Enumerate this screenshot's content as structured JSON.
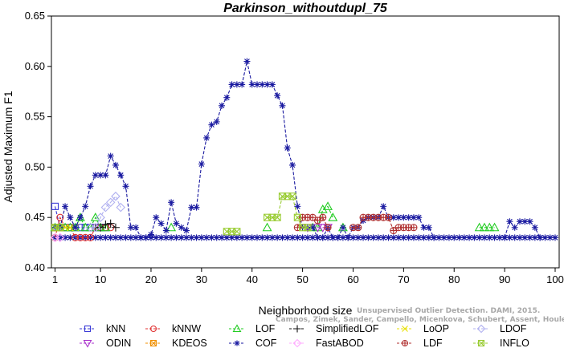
{
  "chart_data": {
    "type": "line",
    "title": "Parkinson_withoutdupl_75",
    "xlabel": "Neighborhood size",
    "ylabel": "Adjusted Maximum F1",
    "xlim": [
      1,
      100
    ],
    "ylim": [
      0.4,
      0.65
    ],
    "xticks": [
      1,
      10,
      20,
      30,
      40,
      50,
      60,
      70,
      80,
      90,
      100
    ],
    "yticks": [
      0.4,
      0.45,
      0.5,
      0.55,
      0.6,
      0.65
    ],
    "ytick_labels": [
      "0.40",
      "0.45",
      "0.50",
      "0.55",
      "0.60",
      "0.65"
    ],
    "grid": false,
    "legend_position": "bottom",
    "watermark": [
      "Unsupervised Outlier Detection. DAMI, 2015.",
      "Campos, Zimek, Sander, Campello, Micenkova, Schubert, Assent, Houle"
    ],
    "baseline": 0.43,
    "series": [
      {
        "name": "kNN",
        "color": "#3a3ad6",
        "marker": "square",
        "points": [
          [
            1,
            0.461
          ],
          [
            2,
            0.44
          ],
          [
            3,
            0.44
          ],
          [
            4,
            0.44
          ],
          [
            5,
            0.44
          ],
          [
            6,
            0.44
          ],
          [
            7,
            0.44
          ],
          [
            8,
            0.44
          ],
          [
            9,
            0.44
          ],
          [
            10,
            0.44
          ],
          [
            11,
            0.44
          ]
        ]
      },
      {
        "name": "kNNW",
        "color": "#e03030",
        "marker": "circle",
        "points": [
          [
            1,
            0.43
          ],
          [
            2,
            0.45
          ],
          [
            3,
            0.44
          ],
          [
            4,
            0.44
          ],
          [
            5,
            0.43
          ],
          [
            6,
            0.43
          ],
          [
            7,
            0.43
          ],
          [
            8,
            0.43
          ],
          [
            9,
            0.44
          ],
          [
            10,
            0.44
          ],
          [
            11,
            0.44
          ],
          [
            12,
            0.44
          ]
        ]
      },
      {
        "name": "LOF",
        "color": "#22cc22",
        "marker": "triangle-up",
        "points": [
          [
            1,
            0.44
          ],
          [
            2,
            0.44
          ],
          [
            3,
            0.44
          ],
          [
            4,
            0.44
          ],
          [
            5,
            0.44
          ],
          [
            6,
            0.45
          ],
          [
            7,
            0.44
          ],
          [
            8,
            0.44
          ],
          [
            9,
            0.45
          ],
          [
            10,
            0.44
          ],
          [
            11,
            0.44
          ],
          [
            24,
            0.44
          ],
          [
            43,
            0.44
          ],
          [
            52,
            0.44
          ],
          [
            53,
            0.44
          ],
          [
            54,
            0.458
          ],
          [
            55,
            0.461
          ],
          [
            56,
            0.45
          ],
          [
            58,
            0.44
          ],
          [
            85,
            0.44
          ],
          [
            86,
            0.44
          ],
          [
            87,
            0.44
          ],
          [
            88,
            0.44
          ]
        ]
      },
      {
        "name": "SimplifiedLOF",
        "color": "#111111",
        "marker": "plus",
        "points": [
          [
            9,
            0.44
          ],
          [
            10,
            0.44
          ],
          [
            11,
            0.443
          ],
          [
            12,
            0.444
          ],
          [
            13,
            0.44
          ]
        ]
      },
      {
        "name": "LoOP",
        "color": "#e8e000",
        "marker": "x",
        "points": [
          [
            3,
            0.44
          ],
          [
            4,
            0.44
          ],
          [
            5,
            0.44
          ]
        ]
      },
      {
        "name": "LDOF",
        "color": "#b0b0f0",
        "marker": "diamond",
        "points": [
          [
            8,
            0.44
          ],
          [
            9,
            0.44
          ],
          [
            10,
            0.45
          ],
          [
            11,
            0.46
          ],
          [
            12,
            0.465
          ],
          [
            13,
            0.471
          ],
          [
            14,
            0.46
          ]
        ]
      },
      {
        "name": "ODIN",
        "color": "#aa33cc",
        "marker": "triangle-down",
        "points": [
          [
            51,
            0.44
          ],
          [
            53,
            0.44
          ],
          [
            54,
            0.44
          ],
          [
            55,
            0.44
          ]
        ]
      },
      {
        "name": "KDEOS",
        "color": "#f09000",
        "marker": "square-x",
        "points": [
          [
            1,
            0.44
          ],
          [
            2,
            0.44
          ]
        ]
      },
      {
        "name": "COF",
        "color": "#1a1aa0",
        "marker": "star",
        "points": [
          [
            1,
            0.44
          ],
          [
            2,
            0.44
          ],
          [
            3,
            0.461
          ],
          [
            4,
            0.45
          ],
          [
            5,
            0.44
          ],
          [
            6,
            0.45
          ],
          [
            7,
            0.461
          ],
          [
            8,
            0.481
          ],
          [
            9,
            0.492
          ],
          [
            10,
            0.492
          ],
          [
            11,
            0.492
          ],
          [
            12,
            0.511
          ],
          [
            13,
            0.502
          ],
          [
            14,
            0.492
          ],
          [
            15,
            0.481
          ],
          [
            16,
            0.44
          ],
          [
            17,
            0.44
          ],
          [
            18,
            0.43
          ],
          [
            19,
            0.43
          ],
          [
            20,
            0.433
          ],
          [
            21,
            0.45
          ],
          [
            22,
            0.444
          ],
          [
            23,
            0.437
          ],
          [
            24,
            0.465
          ],
          [
            25,
            0.444
          ],
          [
            26,
            0.44
          ],
          [
            27,
            0.437
          ],
          [
            28,
            0.46
          ],
          [
            29,
            0.46
          ],
          [
            30,
            0.503
          ],
          [
            31,
            0.529
          ],
          [
            32,
            0.542
          ],
          [
            33,
            0.545
          ],
          [
            34,
            0.561
          ],
          [
            35,
            0.569
          ],
          [
            36,
            0.582
          ],
          [
            37,
            0.582
          ],
          [
            38,
            0.582
          ],
          [
            39,
            0.605
          ],
          [
            40,
            0.582
          ],
          [
            41,
            0.582
          ],
          [
            42,
            0.582
          ],
          [
            43,
            0.582
          ],
          [
            44,
            0.582
          ],
          [
            45,
            0.571
          ],
          [
            46,
            0.561
          ],
          [
            47,
            0.519
          ],
          [
            48,
            0.502
          ],
          [
            49,
            0.461
          ],
          [
            50,
            0.44
          ],
          [
            51,
            0.44
          ],
          [
            52,
            0.44
          ],
          [
            53,
            0.43
          ],
          [
            54,
            0.43
          ],
          [
            55,
            0.44
          ],
          [
            56,
            0.43
          ],
          [
            57,
            0.43
          ],
          [
            58,
            0.44
          ],
          [
            59,
            0.43
          ],
          [
            60,
            0.44
          ],
          [
            61,
            0.44
          ],
          [
            62,
            0.447
          ],
          [
            63,
            0.45
          ],
          [
            64,
            0.45
          ],
          [
            65,
            0.45
          ],
          [
            66,
            0.461
          ],
          [
            67,
            0.45
          ],
          [
            68,
            0.45
          ],
          [
            69,
            0.45
          ],
          [
            70,
            0.45
          ],
          [
            71,
            0.45
          ],
          [
            72,
            0.45
          ],
          [
            73,
            0.45
          ],
          [
            74,
            0.44
          ],
          [
            75,
            0.44
          ],
          [
            76,
            0.43
          ],
          [
            90,
            0.43
          ],
          [
            91,
            0.446
          ],
          [
            92,
            0.44
          ],
          [
            93,
            0.446
          ],
          [
            94,
            0.446
          ],
          [
            95,
            0.446
          ],
          [
            96,
            0.44
          ],
          [
            97,
            0.43
          ]
        ]
      },
      {
        "name": "FastABOD",
        "color": "#ffaaff",
        "marker": "diamond",
        "points": [
          [
            1,
            0.43
          ],
          [
            2,
            0.43
          ]
        ]
      },
      {
        "name": "LDF",
        "color": "#b03030",
        "marker": "circle-plus",
        "points": [
          [
            49,
            0.44
          ],
          [
            50,
            0.45
          ],
          [
            51,
            0.45
          ],
          [
            52,
            0.45
          ],
          [
            53,
            0.447
          ],
          [
            54,
            0.45
          ],
          [
            55,
            0.44
          ],
          [
            60,
            0.44
          ],
          [
            61,
            0.44
          ],
          [
            62,
            0.45
          ],
          [
            63,
            0.45
          ],
          [
            64,
            0.45
          ],
          [
            65,
            0.45
          ],
          [
            66,
            0.45
          ],
          [
            67,
            0.45
          ],
          [
            68,
            0.437
          ],
          [
            69,
            0.44
          ],
          [
            70,
            0.44
          ],
          [
            71,
            0.44
          ],
          [
            72,
            0.44
          ]
        ]
      },
      {
        "name": "INFLO",
        "color": "#99cc33",
        "marker": "square-x",
        "points": [
          [
            1,
            0.44
          ],
          [
            2,
            0.44
          ],
          [
            35,
            0.436
          ],
          [
            36,
            0.436
          ],
          [
            37,
            0.436
          ],
          [
            43,
            0.45
          ],
          [
            44,
            0.45
          ],
          [
            45,
            0.45
          ],
          [
            46,
            0.471
          ],
          [
            47,
            0.471
          ],
          [
            48,
            0.471
          ],
          [
            49,
            0.45
          ],
          [
            50,
            0.44
          ],
          [
            51,
            0.44
          ]
        ]
      }
    ]
  }
}
